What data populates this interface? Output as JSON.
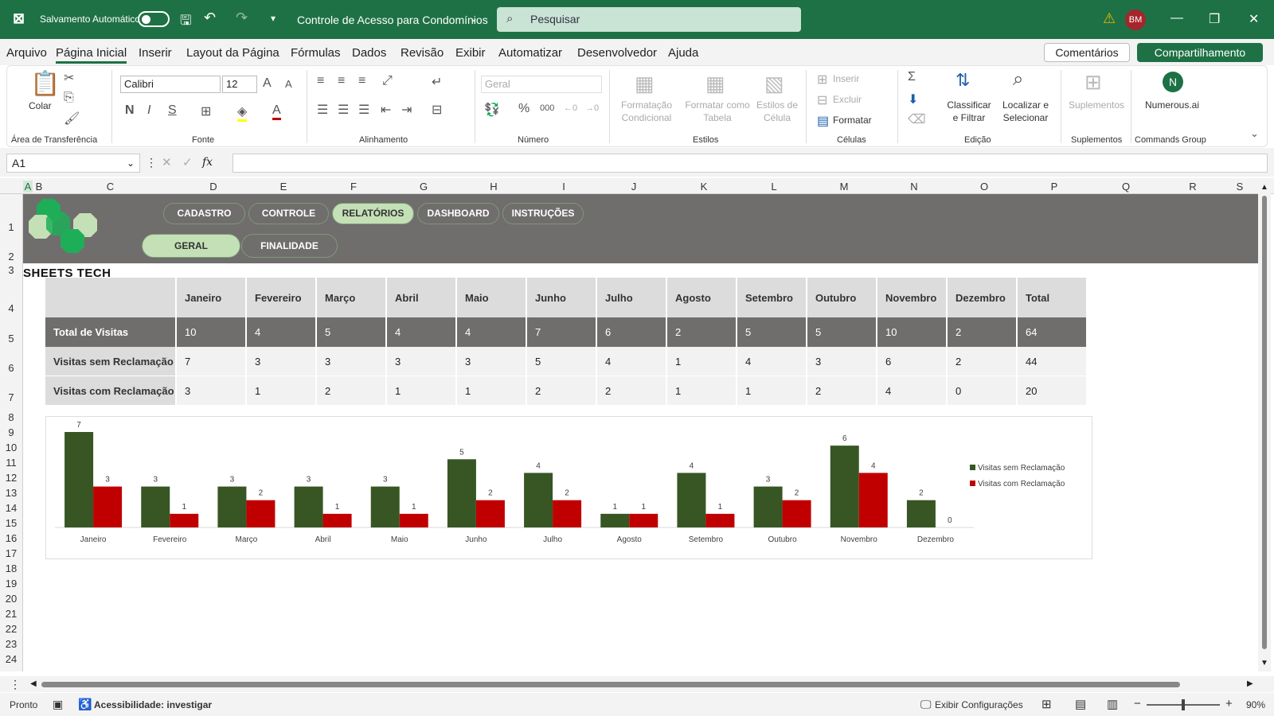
{
  "titlebar": {
    "autosave_label": "Salvamento Automático",
    "doc_title": "Controle de Acesso para Condomínios",
    "search_placeholder": "Pesquisar",
    "user_initials": "BM"
  },
  "menu": [
    "Arquivo",
    "Página Inicial",
    "Inserir",
    "Layout da Página",
    "Fórmulas",
    "Dados",
    "Revisão",
    "Exibir",
    "Automatizar",
    "Desenvolvedor",
    "Ajuda"
  ],
  "menu_actions": {
    "comments": "Comentários",
    "share": "Compartilhamento"
  },
  "ribbon": {
    "paste": "Colar",
    "clipboard_group": "Área de Transferência",
    "font_name": "Calibri",
    "font_size": "12",
    "font_group": "Fonte",
    "align_group": "Alinhamento",
    "number_format": "Geral",
    "number_group": "Número",
    "cond_format": "Formatação Condicional",
    "format_table": "Formatar como Tabela",
    "cell_styles": "Estilos de Célula",
    "styles_group": "Estilos",
    "insert": "Inserir",
    "delete": "Excluir",
    "format": "Formatar",
    "cells_group": "Células",
    "sort_filter": "Classificar e Filtrar",
    "find_select": "Localizar e Selecionar",
    "edit_group": "Edição",
    "addins": "Suplementos",
    "addins_group": "Suplementos",
    "numerous": "Numerous.ai",
    "commands_group": "Commands Group"
  },
  "formula_bar": {
    "name_box": "A1",
    "fx": "fx"
  },
  "columns": [
    "A",
    "B",
    "C",
    "D",
    "E",
    "F",
    "G",
    "H",
    "I",
    "J",
    "K",
    "L",
    "M",
    "N",
    "O",
    "P",
    "Q",
    "R",
    "S"
  ],
  "rows": [
    "1",
    "2",
    "3",
    "4",
    "5",
    "6",
    "7",
    "8",
    "9",
    "10",
    "11",
    "12",
    "13",
    "14",
    "15",
    "16",
    "17",
    "18",
    "19",
    "20",
    "21",
    "22",
    "23",
    "24"
  ],
  "nav_tabs": [
    "CADASTRO",
    "CONTROLE",
    "RELATÓRIOS",
    "DASHBOARD",
    "INSTRUÇÕES"
  ],
  "sub_tabs": [
    "GERAL",
    "FINALIDADE"
  ],
  "brand": "SHEETS TECH",
  "table": {
    "headers": [
      "Janeiro",
      "Fevereiro",
      "Março",
      "Abril",
      "Maio",
      "Junho",
      "Julho",
      "Agosto",
      "Setembro",
      "Outubro",
      "Novembro",
      "Dezembro",
      "Total"
    ],
    "rows": [
      {
        "label": "Total de Visitas",
        "values": [
          "10",
          "4",
          "5",
          "4",
          "4",
          "7",
          "6",
          "2",
          "5",
          "5",
          "10",
          "2",
          "64"
        ]
      },
      {
        "label": "Visitas sem Reclamação",
        "values": [
          "7",
          "3",
          "3",
          "3",
          "3",
          "5",
          "4",
          "1",
          "4",
          "3",
          "6",
          "2",
          "44"
        ]
      },
      {
        "label": "Visitas com Reclamação",
        "values": [
          "3",
          "1",
          "2",
          "1",
          "1",
          "2",
          "2",
          "1",
          "1",
          "2",
          "4",
          "0",
          "20"
        ]
      }
    ]
  },
  "chart_data": {
    "type": "bar",
    "categories": [
      "Janeiro",
      "Fevereiro",
      "Março",
      "Abril",
      "Maio",
      "Junho",
      "Julho",
      "Agosto",
      "Setembro",
      "Outubro",
      "Novembro",
      "Dezembro"
    ],
    "series": [
      {
        "name": "Visitas sem Reclamação",
        "values": [
          7,
          3,
          3,
          3,
          3,
          5,
          4,
          1,
          4,
          3,
          6,
          2
        ],
        "color": "#375623"
      },
      {
        "name": "Visitas com Reclamação",
        "values": [
          3,
          1,
          2,
          1,
          1,
          2,
          2,
          1,
          1,
          2,
          4,
          0
        ],
        "color": "#c00000"
      }
    ],
    "ylim": [
      0,
      7
    ],
    "legend": "right",
    "grid": false
  },
  "status": {
    "ready": "Pronto",
    "accessibility": "Acessibilidade: investigar",
    "display_settings": "Exibir Configurações",
    "zoom": "90%"
  },
  "colors": {
    "excel_green": "#1e7145",
    "banner_gray": "#706d6d",
    "pill_selected": "#c4e0b6"
  }
}
